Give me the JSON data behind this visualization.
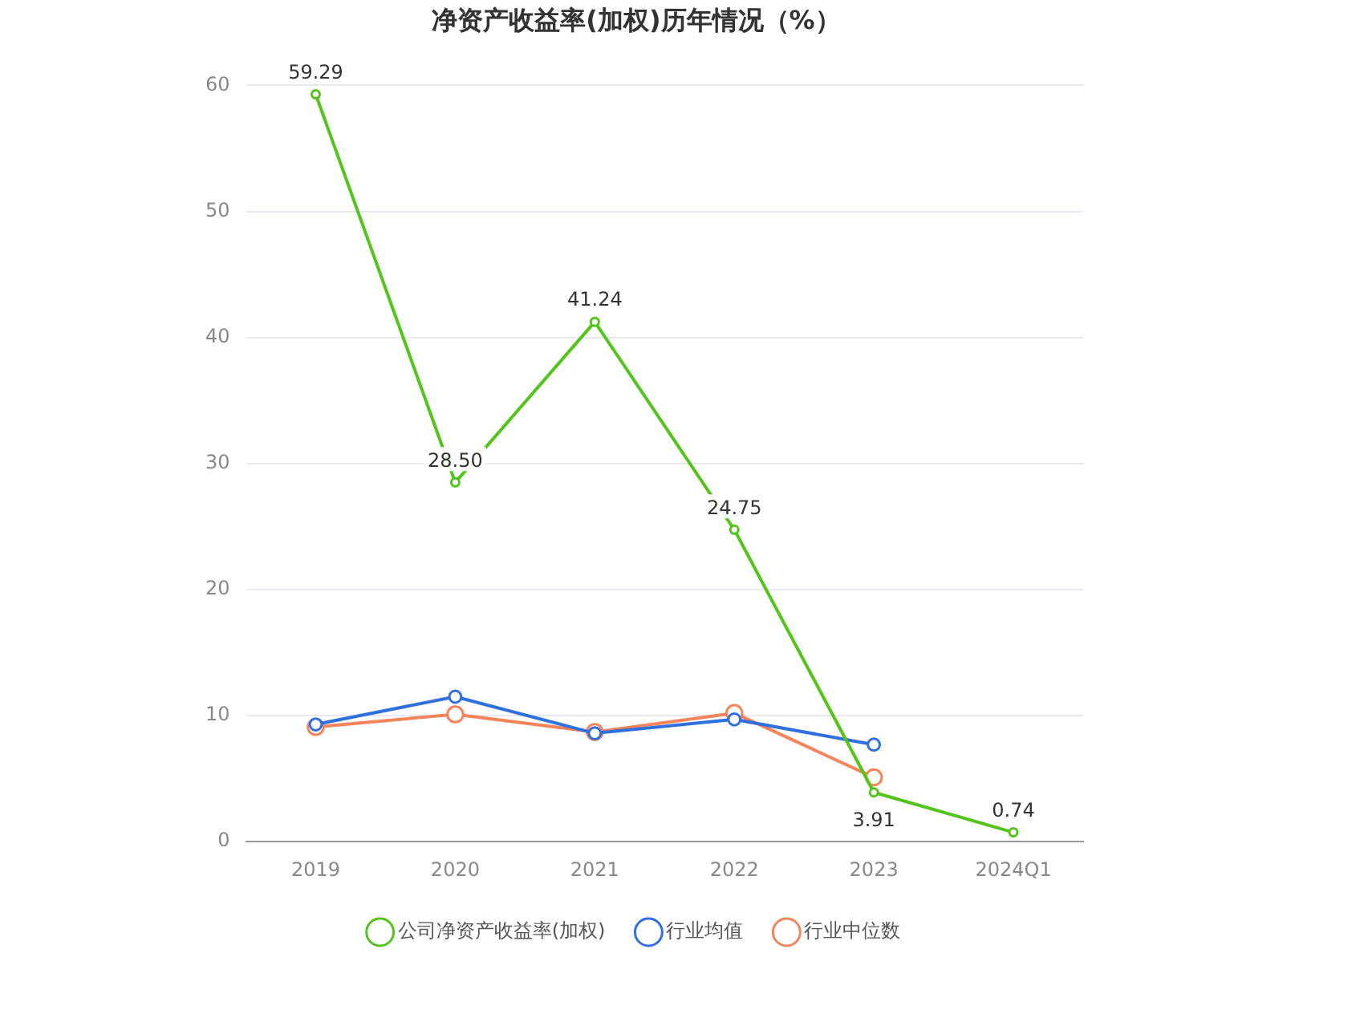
{
  "chart_data": {
    "type": "line",
    "title": "净资产收益率(加权)历年情况（%）",
    "categories": [
      "2019",
      "2020",
      "2021",
      "2022",
      "2023",
      "2024Q1"
    ],
    "series": [
      {
        "name": "公司净资产收益率(加权)",
        "color": "#52c41a",
        "values": [
          59.29,
          28.5,
          41.24,
          24.75,
          3.91,
          0.74
        ],
        "value_labels": [
          "59.29",
          "28.50",
          "41.24",
          "24.75",
          "3.91",
          "0.74"
        ]
      },
      {
        "name": "行业均值",
        "color": "#2f6fde",
        "values": [
          9.3,
          11.5,
          8.6,
          9.7,
          7.7,
          null
        ]
      },
      {
        "name": "行业中位数",
        "color": "#f5845a",
        "values": [
          9.1,
          10.1,
          8.7,
          10.2,
          5.1,
          null
        ]
      }
    ],
    "ylim": [
      0,
      60
    ],
    "yticks": [
      0,
      10,
      20,
      30,
      40,
      50,
      60
    ],
    "grid": "y",
    "legend": "bottom",
    "marker": "circle",
    "line_style": "solid"
  }
}
